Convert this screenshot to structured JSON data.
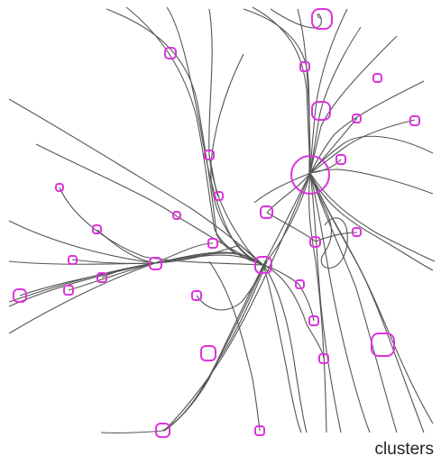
{
  "diagram": {
    "caption": "clusters",
    "colors": {
      "background": "#ffffff",
      "edge": "#555555",
      "node": "#dd33dd"
    },
    "description_visible_only": true
  }
}
